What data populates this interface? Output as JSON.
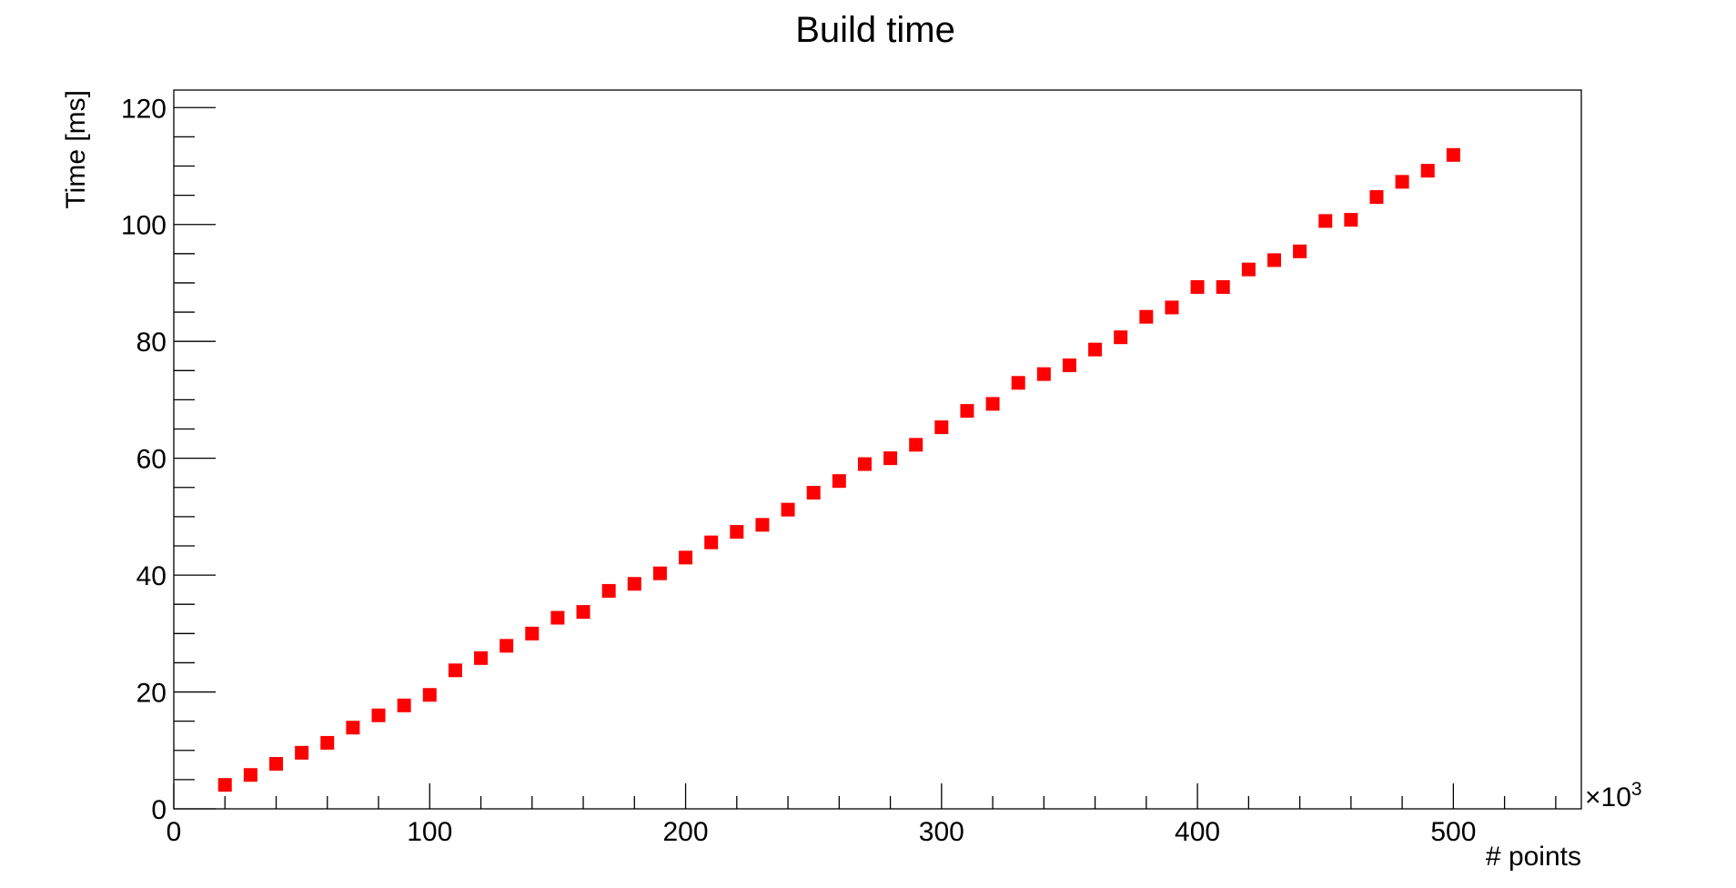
{
  "chart_data": {
    "type": "scatter",
    "title": "Build time",
    "xlabel": "# points",
    "ylabel": "Time [ms]",
    "x_multiplier_label": "×10",
    "x_multiplier_exponent": "3",
    "xlim": [
      0,
      550
    ],
    "ylim": [
      0,
      123
    ],
    "x_major_ticks": [
      0,
      100,
      200,
      300,
      400,
      500
    ],
    "y_major_ticks": [
      0,
      20,
      40,
      60,
      80,
      100,
      120
    ],
    "grid": false,
    "marker_color": "#ff0000",
    "series": [
      {
        "x": [
          20,
          30,
          40,
          50,
          60,
          70,
          80,
          90,
          100,
          110,
          120,
          130,
          140,
          150,
          160,
          170,
          180,
          190,
          200,
          210,
          220,
          230,
          240,
          250,
          260,
          270,
          280,
          290,
          300,
          310,
          320,
          330,
          340,
          350,
          360,
          370,
          380,
          390,
          400,
          410,
          420,
          430,
          440,
          450,
          460,
          470,
          480,
          490,
          500
        ],
        "y": [
          4.1,
          5.8,
          7.7,
          9.6,
          11.3,
          13.9,
          16.0,
          17.7,
          19.5,
          23.7,
          25.8,
          27.9,
          30.0,
          32.7,
          33.7,
          37.3,
          38.5,
          40.3,
          43.0,
          45.6,
          47.4,
          48.6,
          51.2,
          54.1,
          56.1,
          59.0,
          60.0,
          62.3,
          65.3,
          68.1,
          69.3,
          72.9,
          74.4,
          75.9,
          78.6,
          80.7,
          84.2,
          85.8,
          89.3,
          89.3,
          92.3,
          93.9,
          95.4,
          100.6,
          100.8,
          104.7,
          107.3,
          109.2,
          111.9
        ]
      }
    ]
  }
}
